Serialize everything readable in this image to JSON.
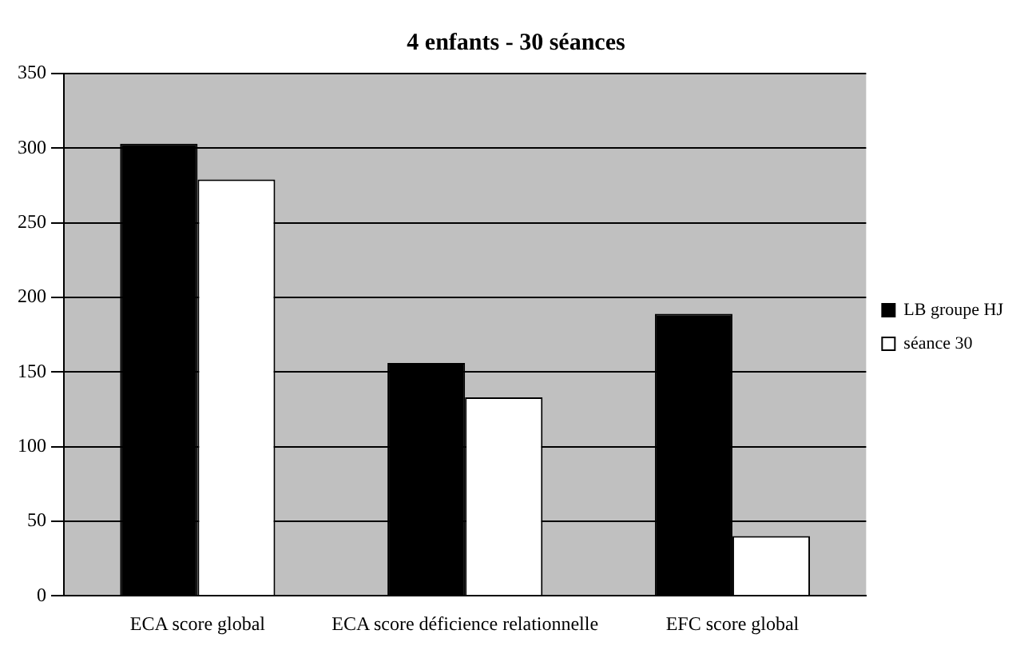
{
  "chart_data": {
    "type": "bar",
    "title": "4 enfants - 30 séances",
    "categories": [
      "ECA score global",
      "ECA score déficience relationnelle",
      "EFC score global"
    ],
    "series": [
      {
        "name": "LB groupe HJ",
        "color": "#000000",
        "values": [
          303,
          156,
          189
        ]
      },
      {
        "name": "séance 30",
        "color": "#ffffff",
        "values": [
          279,
          133,
          40
        ]
      }
    ],
    "ylim": [
      0,
      350
    ],
    "yticks": [
      0,
      50,
      100,
      150,
      200,
      250,
      300,
      350
    ],
    "grid": "y",
    "legend": "right"
  }
}
